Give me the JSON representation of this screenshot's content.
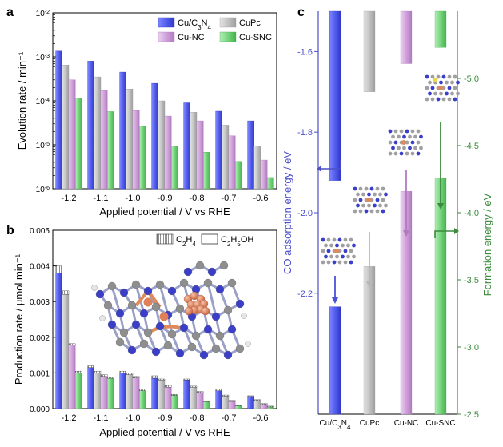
{
  "chart_data": [
    {
      "panel": "a",
      "type": "bar",
      "scale": "log",
      "xlabel": "Applied potential / V vs RHE",
      "ylabel": "Evolution rate / min⁻¹",
      "categories": [
        "-1.2",
        "-1.1",
        "-1.0",
        "-0.9",
        "-0.8",
        "-0.7",
        "-0.6"
      ],
      "ylim": [
        1e-06,
        0.01
      ],
      "yticks": [
        {
          "v": 1e-06,
          "base": "10",
          "exp": "-6"
        },
        {
          "v": 1e-05,
          "base": "10",
          "exp": "-5"
        },
        {
          "v": 0.0001,
          "base": "10",
          "exp": "-4"
        },
        {
          "v": 0.001,
          "base": "10",
          "exp": "-3"
        },
        {
          "v": 0.01,
          "base": "10",
          "exp": "-2"
        }
      ],
      "series": [
        {
          "name": "Cu/C3N4",
          "color": "#4f5ae6",
          "values": [
            0.00135,
            0.0008,
            0.00045,
            0.00025,
            9e-05,
            5.8e-05,
            3.5e-05
          ]
        },
        {
          "name": "CuPc",
          "color": "#bdbdbd",
          "values": [
            0.00065,
            0.00035,
            0.000185,
            0.0001,
            5.5e-05,
            2.8e-05,
            9.5e-06
          ]
        },
        {
          "name": "Cu-NC",
          "color": "#cc99d6",
          "values": [
            0.0003,
            0.00017,
            6e-05,
            4.5e-05,
            3.5e-05,
            1.6e-05,
            4.5e-06
          ]
        },
        {
          "name": "Cu-SNC",
          "color": "#6ccf74",
          "values": [
            0.000115,
            5.7e-05,
            2.7e-05,
            9.5e-06,
            6.8e-06,
            4.2e-06,
            1.8e-06
          ]
        }
      ],
      "legend": {
        "position": "top-right",
        "labels": [
          "Cu/C3N4",
          "CuPc",
          "Cu-NC",
          "Cu-SNC"
        ]
      }
    },
    {
      "panel": "b",
      "type": "bar",
      "xlabel": "Applied potential / V vs RHE",
      "ylabel": "Production rate / μmol min⁻¹",
      "categories": [
        "-1.2",
        "-1.1",
        "-1.0",
        "-0.9",
        "-0.8",
        "-0.7",
        "-0.6"
      ],
      "ylim": [
        0,
        0.005
      ],
      "yticks": [
        "0.000",
        "0.001",
        "0.002",
        "0.003",
        "0.004",
        "0.005"
      ],
      "product_legend": [
        "C2H4",
        "C2H5OH"
      ],
      "series": [
        {
          "name": "Cu/C3N4",
          "color": "#4f5ae6",
          "c2h4": [
            0.004,
            0.0012,
            0.00105,
            0.00092,
            0.00083,
            0.00055,
            0.00036
          ],
          "c2h5oh": [
            0.0038,
            0.00115,
            0.001,
            0.00085,
            0.0008,
            0.0005,
            0.00034
          ]
        },
        {
          "name": "CuPc",
          "color": "#bdbdbd",
          "c2h4": [
            0.0033,
            0.00105,
            0.001,
            0.00083,
            0.00063,
            0.00038,
            0.00025
          ],
          "c2h5oh": [
            0.0032,
            0.001,
            0.00095,
            0.0008,
            0.0006,
            0.00035,
            0.00023
          ]
        },
        {
          "name": "Cu-NC",
          "color": "#cc99d6",
          "c2h4": [
            0.00182,
            0.00095,
            0.0009,
            0.00065,
            0.00048,
            0.00023,
            0.00014
          ],
          "c2h5oh": [
            0.00178,
            0.0009,
            0.00086,
            0.0006,
            0.00045,
            0.0002,
            0.00012
          ]
        },
        {
          "name": "Cu-SNC",
          "color": "#6ccf74",
          "c2h4": [
            0.00105,
            0.00088,
            0.00055,
            0.0004,
            0.00022,
            0.0001,
            7e-05
          ],
          "c2h5oh": [
            0.001,
            0.00085,
            0.0005,
            0.00037,
            0.0002,
            8e-05,
            5e-05
          ]
        }
      ]
    },
    {
      "panel": "c",
      "type": "bar",
      "variant": "floating",
      "ylabel_left": "CO adsorption energy / eV",
      "ylabel_right": "Formation energy / eV",
      "left_ylim": [
        -2.5,
        -1.5
      ],
      "left_yticks": [
        "-1.6",
        "-1.8",
        "-2.0",
        "-2.2"
      ],
      "right_ylim": [
        -2.5,
        -5.5
      ],
      "right_yticks": [
        "-5.0",
        "-4.5",
        "-4.0",
        "-3.5",
        "-3.0",
        "-2.5"
      ],
      "categories": [
        "Cu/C3N4",
        "CuPc",
        "Cu-NC",
        "Cu-SNC"
      ],
      "co_adsorption": [
        -1.92,
        -1.7,
        -1.63,
        -1.59
      ],
      "formation": [
        -3.3,
        -3.6,
        -4.16,
        -4.26
      ]
    }
  ],
  "panel_labels": [
    "a",
    "b",
    "c"
  ],
  "colors": {
    "blue": "#4f5ae6",
    "gray": "#bdbdbd",
    "purple": "#cc99d6",
    "green": "#6ccf74",
    "axis_left": "#4b4fc9",
    "axis_right": "#3b8a3b",
    "copper": "#e08a5c"
  }
}
